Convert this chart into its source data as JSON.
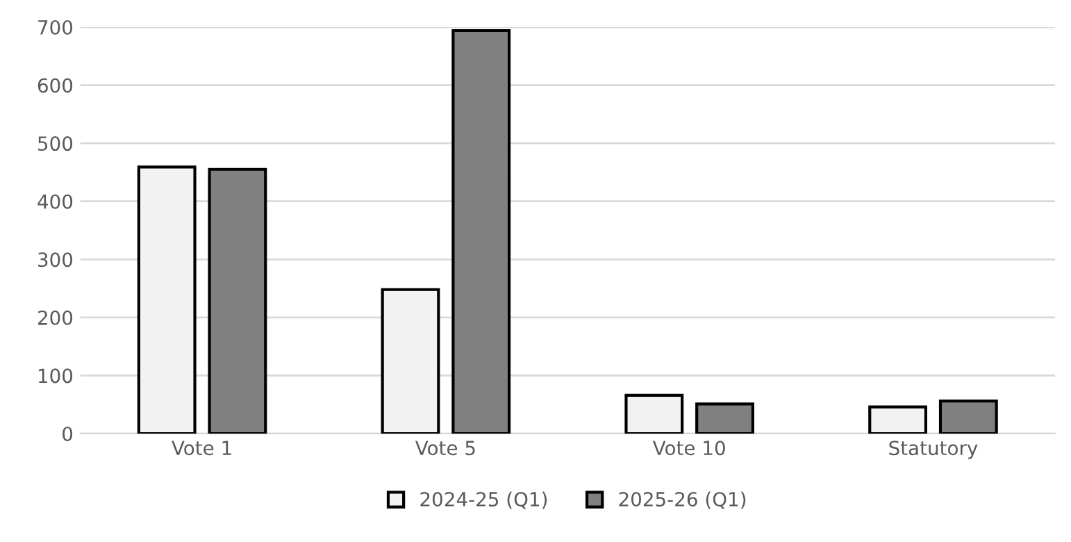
{
  "chart_data": {
    "type": "bar",
    "categories": [
      "Vote 1",
      "Vote 5",
      "Vote 10",
      "Statutory"
    ],
    "series": [
      {
        "name": "2024-25 (Q1)",
        "color": "#f2f2f2",
        "values": [
          459,
          248,
          66,
          46
        ]
      },
      {
        "name": "2025-26 (Q1)",
        "color": "#808080",
        "values": [
          455,
          694,
          51,
          56
        ]
      }
    ],
    "ylim": [
      0,
      700
    ],
    "yticks": [
      0,
      100,
      200,
      300,
      400,
      500,
      600,
      700
    ],
    "grid": "y",
    "legend": "bottom"
  }
}
